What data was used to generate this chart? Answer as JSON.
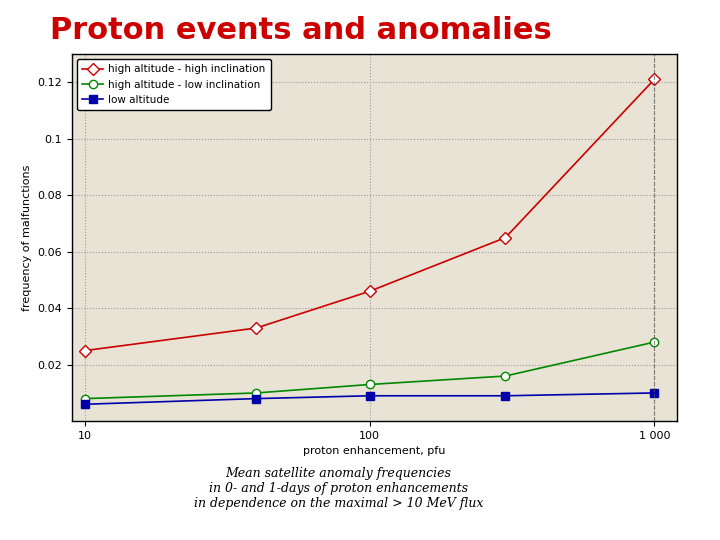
{
  "title": "Proton events and anomalies",
  "title_color": "#cc0000",
  "title_fontsize": 22,
  "title_weight": "bold",
  "xlabel": "proton enhancement, pfu",
  "ylabel": "frequency of malfunctions",
  "plot_bg_color": "#e8e3d5",
  "outer_bg_color": "#d8d3c5",
  "caption_bg_color": "#aed8e6",
  "caption_text": "Mean satellite anomaly frequencies\nin 0- and 1-days of proton enhancements\nin dependence on the maximal > 10 MeV flux",
  "x": [
    10,
    40,
    100,
    300,
    1000
  ],
  "series": [
    {
      "label": "high altitude - high inclination",
      "color": "#cc0000",
      "marker": "D",
      "marker_facecolor": "white",
      "y": [
        0.025,
        0.033,
        0.046,
        0.065,
        0.121
      ]
    },
    {
      "label": "high altitude - low inclination",
      "color": "#008800",
      "marker": "o",
      "marker_facecolor": "white",
      "y": [
        0.008,
        0.01,
        0.013,
        0.016,
        0.028
      ]
    },
    {
      "label": "low altitude",
      "color": "#0000aa",
      "marker": "s",
      "marker_facecolor": "#0000aa",
      "y": [
        0.006,
        0.008,
        0.009,
        0.009,
        0.01
      ]
    }
  ],
  "ylim": [
    0,
    0.13
  ],
  "yticks": [
    0.02,
    0.04,
    0.06,
    0.08,
    0.1,
    0.12
  ],
  "ytick_labels": [
    "0.02",
    "0.04",
    "0.06",
    "0.08",
    "0.1",
    "0.12"
  ],
  "grid_color": "#999999",
  "grid_style": "dotted"
}
